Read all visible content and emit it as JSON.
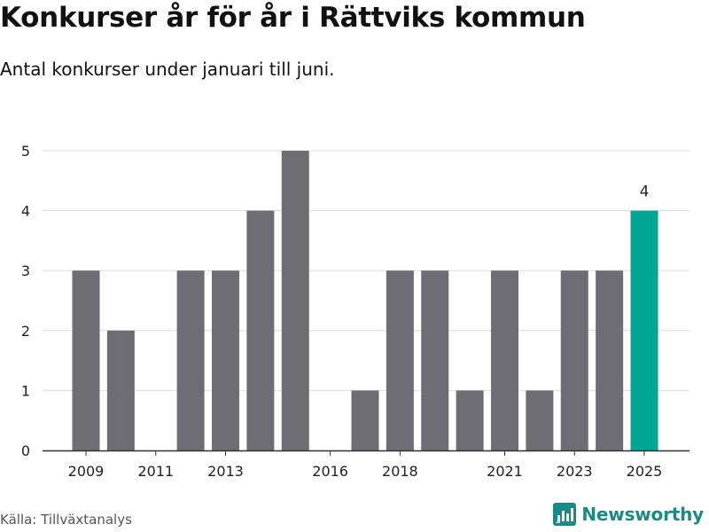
{
  "title": "Konkurser år för år i Rättviks kommun",
  "subtitle": "Antal konkurser under januari till juni.",
  "source": "Källa: Tillväxtanalys",
  "brand": "Newsworthy",
  "colors": {
    "bar": "#6e6d73",
    "highlight": "#00a594",
    "grid": "#dddddd",
    "axis": "#333333"
  },
  "chart_data": {
    "type": "bar",
    "categories": [
      "2009",
      "2010",
      "2011",
      "2012",
      "2013",
      "2014",
      "2015",
      "2016",
      "2017",
      "2018",
      "2019",
      "2020",
      "2021",
      "2022",
      "2023",
      "2024",
      "2025"
    ],
    "values": [
      3,
      2,
      0,
      3,
      3,
      4,
      5,
      0,
      1,
      3,
      3,
      1,
      3,
      1,
      3,
      3,
      4
    ],
    "x_tick_labels": [
      "2009",
      "2011",
      "2013",
      "2016",
      "2018",
      "2021",
      "2023",
      "2025"
    ],
    "y_ticks": [
      0,
      1,
      2,
      3,
      4,
      5
    ],
    "ylim": [
      0,
      5
    ],
    "highlight": {
      "category": "2025",
      "label": "4"
    },
    "grid": true
  }
}
